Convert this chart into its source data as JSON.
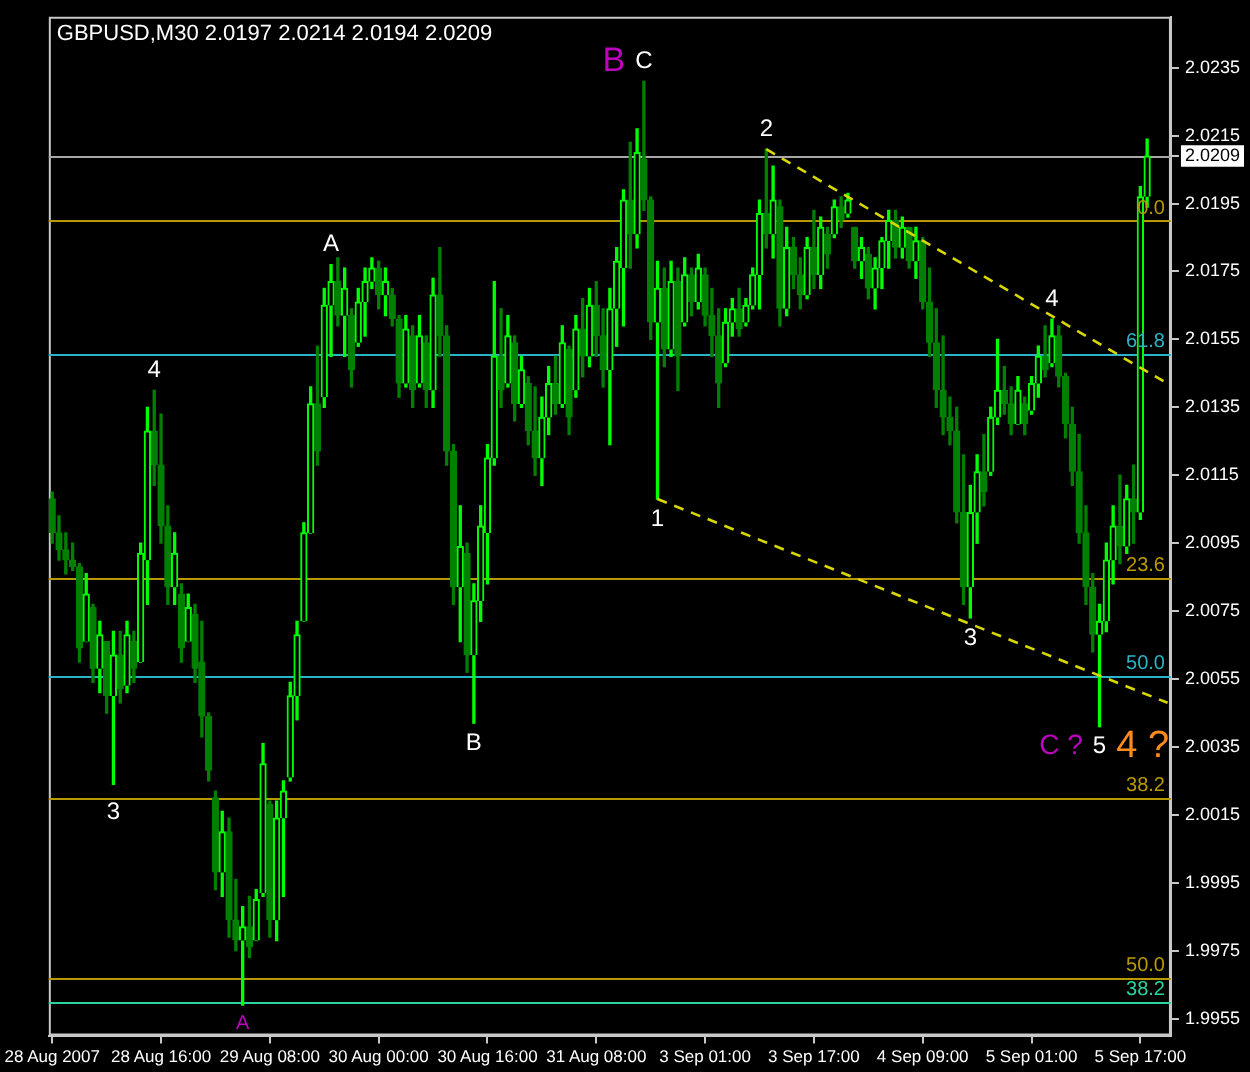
{
  "chart_data": {
    "type": "candlestick",
    "title": "GBPUSD,M30 2.0197 2.0214 2.0194 2.0209",
    "categories": [
      "28 Aug 2007",
      null,
      null,
      null,
      null,
      null,
      null,
      null,
      null,
      null,
      null,
      null,
      null,
      null,
      null,
      null,
      "28 Aug 16:00",
      null,
      null,
      null,
      null,
      null,
      null,
      null,
      null,
      null,
      null,
      null,
      null,
      null,
      null,
      null,
      "29 Aug 08:00",
      null,
      null,
      null,
      null,
      null,
      null,
      null,
      null,
      null,
      null,
      null,
      null,
      null,
      null,
      null,
      "30 Aug 00:00",
      null,
      null,
      null,
      null,
      null,
      null,
      null,
      null,
      null,
      null,
      null,
      null,
      null,
      null,
      null,
      "30 Aug 16:00",
      null,
      null,
      null,
      null,
      null,
      null,
      null,
      null,
      null,
      null,
      null,
      null,
      null,
      null,
      null,
      "31 Aug 08:00",
      null,
      null,
      null,
      null,
      null,
      null,
      null,
      null,
      null,
      null,
      null,
      null,
      null,
      null,
      null,
      "3 Sep 01:00",
      null,
      null,
      null,
      null,
      null,
      null,
      null,
      null,
      null,
      null,
      null,
      null,
      null,
      null,
      null,
      "3 Sep 17:00",
      null,
      null,
      null,
      null,
      null,
      null,
      null,
      null,
      null,
      null,
      null,
      null,
      null,
      null,
      null,
      "4 Sep 09:00",
      null,
      null,
      null,
      null,
      null,
      null,
      null,
      null,
      null,
      null,
      null,
      null,
      null,
      null,
      null,
      "5 Sep 01:00",
      null,
      null,
      null,
      null,
      null,
      null,
      null,
      null,
      null,
      null,
      null,
      null,
      null,
      null,
      null,
      "5 Sep 17:00",
      null,
      null,
      null,
      null
    ],
    "ohlc": [
      [
        2.0108,
        2.011,
        2.0095,
        2.0098
      ],
      [
        2.0098,
        2.0103,
        2.009,
        2.0093
      ],
      [
        2.0093,
        2.0098,
        2.0086,
        2.009
      ],
      [
        2.009,
        2.0095,
        2.0087,
        2.0088
      ],
      [
        2.0088,
        2.0089,
        2.006,
        2.0064
      ],
      [
        2.0066,
        2.0086,
        2.0066,
        2.008
      ],
      [
        2.0076,
        2.0077,
        2.0054,
        2.0058
      ],
      [
        2.0058,
        2.0072,
        2.0051,
        2.0068
      ],
      [
        2.0066,
        2.0066,
        2.0045,
        2.005
      ],
      [
        2.005,
        2.0069,
        2.0024,
        2.0062
      ],
      [
        2.0062,
        2.0069,
        2.0048,
        2.0052
      ],
      [
        2.0053,
        2.0072,
        2.0051,
        2.0068
      ],
      [
        2.0066,
        2.0069,
        2.0054,
        2.0058
      ],
      [
        2.006,
        2.0095,
        2.006,
        2.0092
      ],
      [
        2.009,
        2.0135,
        2.0077,
        2.0128
      ],
      [
        2.0128,
        2.014,
        2.0112,
        2.0118
      ],
      [
        2.0118,
        2.0133,
        2.0095,
        2.01
      ],
      [
        2.01,
        2.0106,
        2.0077,
        2.0082
      ],
      [
        2.0082,
        2.0098,
        2.0077,
        2.0092
      ],
      [
        2.008,
        2.0083,
        2.006,
        2.0064
      ],
      [
        2.0066,
        2.008,
        2.0066,
        2.0076
      ],
      [
        2.0074,
        2.0077,
        2.0054,
        2.0058
      ],
      [
        2.006,
        2.0072,
        2.0038,
        2.0044
      ],
      [
        2.0044,
        2.0045,
        2.0025,
        2.0028
      ],
      [
        2.002,
        2.0022,
        1.9993,
        1.9998
      ],
      [
        1.9998,
        2.0016,
        1.9991,
        2.001
      ],
      [
        2.001,
        2.0014,
        1.9979,
        1.9984
      ],
      [
        1.9984,
        1.9996,
        1.9975,
        1.9978
      ],
      [
        1.9978,
        1.9988,
        1.9959,
        1.9982
      ],
      [
        1.9982,
        1.9991,
        1.9973,
        1.9976
      ],
      [
        1.9978,
        1.9993,
        1.9978,
        1.999
      ],
      [
        1.9992,
        2.0036,
        1.9991,
        2.003
      ],
      [
        2.0018,
        2.0019,
        1.9979,
        1.9984
      ],
      [
        1.9984,
        2.0019,
        1.9978,
        2.0014
      ],
      [
        2.0014,
        2.0025,
        1.9991,
        2.0022
      ],
      [
        2.0026,
        2.0054,
        2.0025,
        2.005
      ],
      [
        2.005,
        2.0072,
        2.0043,
        2.0068
      ],
      [
        2.0072,
        2.0101,
        2.0072,
        2.0098
      ],
      [
        2.0098,
        2.0141,
        2.0098,
        2.0136
      ],
      [
        2.0136,
        2.0153,
        2.0118,
        2.0122
      ],
      [
        2.0138,
        2.017,
        2.0135,
        2.0165
      ],
      [
        2.0165,
        2.0177,
        2.015,
        2.0172
      ],
      [
        2.0172,
        2.0179,
        2.0159,
        2.0162
      ],
      [
        2.0162,
        2.0176,
        2.015,
        2.017
      ],
      [
        2.0162,
        2.0164,
        2.0141,
        2.0146
      ],
      [
        2.0154,
        2.017,
        2.0153,
        2.0166
      ],
      [
        2.0166,
        2.0176,
        2.0156,
        2.0172
      ],
      [
        2.0172,
        2.0179,
        2.017,
        2.0176
      ],
      [
        2.0176,
        2.0178,
        2.0164,
        2.0168
      ],
      [
        2.0168,
        2.0176,
        2.0162,
        2.0172
      ],
      [
        2.0168,
        2.017,
        2.0159,
        2.0161
      ],
      [
        2.0161,
        2.0162,
        2.0138,
        2.0142
      ],
      [
        2.0142,
        2.0162,
        2.0141,
        2.0158
      ],
      [
        2.0156,
        2.0159,
        2.0135,
        2.014
      ],
      [
        2.0142,
        2.0162,
        2.0141,
        2.0156
      ],
      [
        2.0154,
        2.0156,
        2.0135,
        2.014
      ],
      [
        2.014,
        2.0173,
        2.0135,
        2.0168
      ],
      [
        2.0168,
        2.0182,
        2.015,
        2.0156
      ],
      [
        2.0156,
        2.0159,
        2.0118,
        2.0122
      ],
      [
        2.0122,
        2.0124,
        2.0077,
        2.0082
      ],
      [
        2.0082,
        2.0106,
        2.0066,
        2.0094
      ],
      [
        2.0092,
        2.0095,
        2.0057,
        2.0062
      ],
      [
        2.0062,
        2.0083,
        2.0042,
        2.0078
      ],
      [
        2.0078,
        2.0106,
        2.0072,
        2.01
      ],
      [
        2.0098,
        2.0124,
        2.0083,
        2.012
      ],
      [
        2.012,
        2.0172,
        2.0118,
        2.015
      ],
      [
        2.015,
        2.0164,
        2.0135,
        2.014
      ],
      [
        2.0142,
        2.0162,
        2.0141,
        2.0156
      ],
      [
        2.0154,
        2.0156,
        2.0131,
        2.0136
      ],
      [
        2.0136,
        2.015,
        2.0135,
        2.0146
      ],
      [
        2.0142,
        2.0144,
        2.0124,
        2.0128
      ],
      [
        2.0128,
        2.0141,
        2.0115,
        2.012
      ],
      [
        2.012,
        2.0138,
        2.0112,
        2.0132
      ],
      [
        2.0132,
        2.0147,
        2.0127,
        2.0142
      ],
      [
        2.0142,
        2.015,
        2.0133,
        2.0136
      ],
      [
        2.0136,
        2.0159,
        2.0135,
        2.0154
      ],
      [
        2.0152,
        2.0153,
        2.0127,
        2.0132
      ],
      [
        2.014,
        2.0162,
        2.0138,
        2.0158
      ],
      [
        2.0158,
        2.0167,
        2.0144,
        2.015
      ],
      [
        2.015,
        2.017,
        2.0147,
        2.0165
      ],
      [
        2.0165,
        2.0172,
        2.015,
        2.0156
      ],
      [
        2.0156,
        2.0164,
        2.0141,
        2.0146
      ],
      [
        2.0146,
        2.017,
        2.0124,
        2.0164
      ],
      [
        2.0164,
        2.0182,
        2.0153,
        2.0178
      ],
      [
        2.0176,
        2.0199,
        2.0159,
        2.0196
      ],
      [
        2.0196,
        2.0213,
        2.0176,
        2.0186
      ],
      [
        2.0186,
        2.0217,
        2.0182,
        2.021
      ],
      [
        2.0208,
        2.0231,
        2.0193,
        2.0196
      ],
      [
        2.0196,
        2.0197,
        2.0155,
        2.016
      ],
      [
        2.016,
        2.0178,
        2.0108,
        2.017
      ],
      [
        2.017,
        2.0176,
        2.0147,
        2.0152
      ],
      [
        2.0152,
        2.0178,
        2.015,
        2.0172
      ],
      [
        2.0172,
        2.0176,
        2.014,
        2.015
      ],
      [
        2.016,
        2.0179,
        2.0159,
        2.0174
      ],
      [
        2.0174,
        2.0176,
        2.0162,
        2.0166
      ],
      [
        2.0166,
        2.018,
        2.0164,
        2.0176
      ],
      [
        2.0174,
        2.0176,
        2.0159,
        2.0162
      ],
      [
        2.0162,
        2.017,
        2.015,
        2.0156
      ],
      [
        2.0156,
        2.0164,
        2.0135,
        2.0142
      ],
      [
        2.0148,
        2.0164,
        2.0147,
        2.016
      ],
      [
        2.016,
        2.0167,
        2.0156,
        2.0164
      ],
      [
        2.0164,
        2.017,
        2.0156,
        2.0158
      ],
      [
        2.016,
        2.0167,
        2.0159,
        2.0165
      ],
      [
        2.0165,
        2.0176,
        2.0164,
        2.0174
      ],
      [
        2.0174,
        2.0196,
        2.0164,
        2.0192
      ],
      [
        2.0192,
        2.0211,
        2.0182,
        2.0186
      ],
      [
        2.0186,
        2.0206,
        2.0179,
        2.0196
      ],
      [
        2.0194,
        2.0196,
        2.0159,
        2.0164
      ],
      [
        2.0164,
        2.0188,
        2.0162,
        2.0182
      ],
      [
        2.0182,
        2.0185,
        2.017,
        2.0174
      ],
      [
        2.0174,
        2.0179,
        2.0164,
        2.0168
      ],
      [
        2.0168,
        2.0185,
        2.0167,
        2.0182
      ],
      [
        2.0182,
        2.0193,
        2.017,
        2.0174
      ],
      [
        2.0174,
        2.0191,
        2.017,
        2.0188
      ],
      [
        2.0186,
        2.0188,
        2.0176,
        2.018
      ],
      [
        2.0186,
        2.0196,
        2.0185,
        2.0194
      ],
      [
        2.0194,
        2.0197,
        2.0188,
        2.019
      ],
      [
        2.0192,
        2.0198,
        2.0191,
        2.0196
      ],
      [
        2.0188,
        2.0188,
        2.0176,
        2.0178
      ],
      [
        2.0178,
        2.0185,
        2.0173,
        2.0182
      ],
      [
        2.018,
        2.0182,
        2.0167,
        2.017
      ],
      [
        2.017,
        2.0179,
        2.0164,
        2.0176
      ],
      [
        2.0176,
        2.0185,
        2.017,
        2.0184
      ],
      [
        2.0184,
        2.0193,
        2.0176,
        2.019
      ],
      [
        2.019,
        2.0193,
        2.0179,
        2.0182
      ],
      [
        2.0182,
        2.0191,
        2.0179,
        2.0188
      ],
      [
        2.0188,
        2.0188,
        2.0176,
        2.0178
      ],
      [
        2.0178,
        2.0188,
        2.0173,
        2.0184
      ],
      [
        2.0184,
        2.0185,
        2.0164,
        2.0166
      ],
      [
        2.0166,
        2.0176,
        2.015,
        2.0154
      ],
      [
        2.0154,
        2.0164,
        2.0135,
        2.014
      ],
      [
        2.014,
        2.0156,
        2.0127,
        2.0132
      ],
      [
        2.0132,
        2.0138,
        2.0124,
        2.0128
      ],
      [
        2.0128,
        2.0135,
        2.0101,
        2.0104
      ],
      [
        2.0104,
        2.0121,
        2.0077,
        2.0082
      ],
      [
        2.0082,
        2.0112,
        2.0073,
        2.0104
      ],
      [
        2.0104,
        2.0121,
        2.0095,
        2.0116
      ],
      [
        2.0116,
        2.0127,
        2.0106,
        2.011
      ],
      [
        2.0116,
        2.0135,
        2.0115,
        2.0132
      ],
      [
        2.0132,
        2.0155,
        2.013,
        2.014
      ],
      [
        2.014,
        2.0147,
        2.0133,
        2.0136
      ],
      [
        2.0136,
        2.0141,
        2.0127,
        2.013
      ],
      [
        2.013,
        2.0144,
        2.013,
        2.014
      ],
      [
        2.0136,
        2.0138,
        2.0127,
        2.013
      ],
      [
        2.0134,
        2.0144,
        2.0133,
        2.0142
      ],
      [
        2.0142,
        2.0153,
        2.0138,
        2.015
      ],
      [
        2.015,
        2.0159,
        2.0144,
        2.0146
      ],
      [
        2.0148,
        2.0161,
        2.0147,
        2.0156
      ],
      [
        2.0156,
        2.0159,
        2.0141,
        2.0144
      ],
      [
        2.0144,
        2.0145,
        2.0126,
        2.013
      ],
      [
        2.013,
        2.0135,
        2.0112,
        2.0116
      ],
      [
        2.0116,
        2.0127,
        2.0095,
        2.0098
      ],
      [
        2.0098,
        2.0106,
        2.0077,
        2.0082
      ],
      [
        2.0082,
        2.0086,
        2.0063,
        2.0068
      ],
      [
        2.0068,
        2.0077,
        2.0041,
        2.0072
      ],
      [
        2.0072,
        2.0095,
        2.0069,
        2.009
      ],
      [
        2.009,
        2.0106,
        2.0083,
        2.01
      ],
      [
        2.01,
        2.0115,
        2.0089,
        2.0094
      ],
      [
        2.0094,
        2.0112,
        2.0092,
        2.0108
      ],
      [
        2.0108,
        2.0118,
        2.0095,
        2.0104
      ],
      [
        2.0104,
        2.02,
        2.0102,
        2.0197
      ],
      [
        2.0197,
        2.0214,
        2.0194,
        2.0209
      ],
      null,
      null,
      null
    ],
    "colors": [
      "#008000",
      "#008000",
      "#008000",
      "#008000",
      "#008000",
      "#00ff00",
      "#008000",
      "#00ff00",
      "#008000",
      "#00ff00",
      "#008000",
      "#00ff00",
      "#008000",
      "#00ff00",
      "#00ff00",
      "#008000",
      "#008000",
      "#008000",
      "#00ff00",
      "#008000",
      "#00ff00",
      "#008000",
      "#008000",
      "#008000",
      "#008000",
      "#00ff00",
      "#008000",
      "#008000",
      "#00ff00",
      "#008000",
      "#00ff00",
      "#00ff00",
      "#008000",
      "#00ff00",
      "#00ff00",
      "#00ff00",
      "#00ff00",
      "#00ff00",
      "#00ff00",
      "#008000",
      "#00ff00",
      "#00ff00",
      "#008000",
      "#00ff00",
      "#008000",
      "#00ff00",
      "#00ff00",
      "#00ff00",
      "#008000",
      "#00ff00",
      "#008000",
      "#008000",
      "#00ff00",
      "#008000",
      "#00ff00",
      "#008000",
      "#00ff00",
      "#008000",
      "#008000",
      "#008000",
      "#00ff00",
      "#008000",
      "#00ff00",
      "#00ff00",
      "#00ff00",
      "#00ff00",
      "#008000",
      "#00ff00",
      "#008000",
      "#00ff00",
      "#008000",
      "#008000",
      "#00ff00",
      "#00ff00",
      "#008000",
      "#00ff00",
      "#008000",
      "#00ff00",
      "#008000",
      "#00ff00",
      "#008000",
      "#008000",
      "#00ff00",
      "#00ff00",
      "#00ff00",
      "#008000",
      "#00ff00",
      "#008000",
      "#008000",
      "#00ff00",
      "#008000",
      "#00ff00",
      "#008000",
      "#00ff00",
      "#008000",
      "#00ff00",
      "#008000",
      "#008000",
      "#008000",
      "#00ff00",
      "#00ff00",
      "#008000",
      "#00ff00",
      "#00ff00",
      "#00ff00",
      "#008000",
      "#00ff00",
      "#008000",
      "#00ff00",
      "#008000",
      "#008000",
      "#00ff00",
      "#008000",
      "#00ff00",
      "#008000",
      "#00ff00",
      "#008000",
      "#00ff00",
      "#008000",
      "#00ff00",
      "#008000",
      "#00ff00",
      "#00ff00",
      "#00ff00",
      "#008000",
      "#00ff00",
      "#008000",
      "#00ff00",
      "#008000",
      "#008000",
      "#008000",
      "#008000",
      "#008000",
      "#008000",
      "#008000",
      "#00ff00",
      "#00ff00",
      "#008000",
      "#00ff00",
      "#00ff00",
      "#008000",
      "#008000",
      "#00ff00",
      "#008000",
      "#00ff00",
      "#00ff00",
      "#008000",
      "#00ff00",
      "#008000",
      "#008000",
      "#008000",
      "#008000",
      "#008000",
      "#008000",
      "#00ff00",
      "#00ff00",
      "#00ff00",
      "#008000",
      "#00ff00",
      "#008000",
      "#00ff00",
      "#00ff00",
      null,
      null,
      null
    ],
    "series": [
      {
        "type": "line",
        "color": "#d8d800",
        "line_style": "dashed",
        "values": [
          null,
          null,
          null,
          null,
          null,
          null,
          null,
          null,
          null,
          null,
          null,
          null,
          null,
          null,
          null,
          null,
          null,
          null,
          null,
          null,
          null,
          null,
          null,
          null,
          null,
          null,
          null,
          null,
          null,
          null,
          null,
          null,
          null,
          null,
          null,
          null,
          null,
          null,
          null,
          null,
          null,
          null,
          null,
          null,
          null,
          null,
          null,
          null,
          null,
          null,
          null,
          null,
          null,
          null,
          null,
          null,
          null,
          null,
          null,
          null,
          null,
          null,
          null,
          null,
          null,
          null,
          null,
          null,
          null,
          null,
          null,
          null,
          null,
          null,
          null,
          null,
          null,
          null,
          null,
          null,
          null,
          null,
          null,
          null,
          null,
          null,
          null,
          null,
          null,
          null,
          null,
          null,
          null,
          null,
          null,
          null,
          null,
          null,
          null,
          null,
          null,
          null,
          null,
          null,
          null,
          2.0211,
          null,
          null,
          null,
          null,
          null,
          null,
          null,
          null,
          null,
          null,
          null,
          null,
          null,
          null,
          null,
          null,
          null,
          null,
          null,
          null,
          null,
          null,
          null,
          null,
          null,
          null,
          null,
          null,
          null,
          null,
          null,
          null,
          null,
          null,
          null,
          null,
          null,
          null,
          null,
          null,
          null,
          null,
          null,
          null,
          null,
          null,
          null,
          null,
          null,
          null,
          null,
          null,
          null,
          null,
          null,
          null,
          null,
          null,
          2.0142
        ]
      },
      {
        "type": "line",
        "color": "#d8d800",
        "line_style": "dashed",
        "values": [
          null,
          null,
          null,
          null,
          null,
          null,
          null,
          null,
          null,
          null,
          null,
          null,
          null,
          null,
          null,
          null,
          null,
          null,
          null,
          null,
          null,
          null,
          null,
          null,
          null,
          null,
          null,
          null,
          null,
          null,
          null,
          null,
          null,
          null,
          null,
          null,
          null,
          null,
          null,
          null,
          null,
          null,
          null,
          null,
          null,
          null,
          null,
          null,
          null,
          null,
          null,
          null,
          null,
          null,
          null,
          null,
          null,
          null,
          null,
          null,
          null,
          null,
          null,
          null,
          null,
          null,
          null,
          null,
          null,
          null,
          null,
          null,
          null,
          null,
          null,
          null,
          null,
          null,
          null,
          null,
          null,
          null,
          null,
          null,
          null,
          null,
          null,
          null,
          null,
          2.0108,
          null,
          null,
          null,
          null,
          null,
          null,
          null,
          null,
          null,
          null,
          null,
          null,
          null,
          null,
          null,
          null,
          null,
          null,
          null,
          null,
          null,
          null,
          null,
          null,
          null,
          null,
          null,
          null,
          null,
          null,
          null,
          null,
          null,
          null,
          null,
          null,
          null,
          null,
          null,
          null,
          null,
          null,
          null,
          null,
          null,
          null,
          null,
          null,
          null,
          null,
          null,
          null,
          null,
          null,
          null,
          null,
          null,
          null,
          null,
          null,
          null,
          null,
          null,
          null,
          null,
          null,
          null,
          null,
          null,
          null,
          null,
          null,
          null,
          null,
          2.0048
        ]
      }
    ],
    "ylim": [
      1.995,
      2.025
    ],
    "yticks": [
      1.9955,
      1.9975,
      1.9995,
      2.0015,
      2.0035,
      2.0055,
      2.0075,
      2.0095,
      2.0115,
      2.0135,
      2.0155,
      2.0175,
      2.0195,
      2.0209,
      2.0215,
      2.0235
    ],
    "ref_lines": [
      {
        "axis": "y",
        "value": 2.0209,
        "color": "#a8a8a8"
      },
      {
        "axis": "y",
        "value": 2.019,
        "color": "#b89a00"
      },
      {
        "axis": "y",
        "value": 2.0151,
        "color": "#2ab4c6"
      },
      {
        "axis": "y",
        "value": 2.0085,
        "color": "#b89a00"
      },
      {
        "axis": "y",
        "value": 2.0056,
        "color": "#2ab4c6"
      },
      {
        "axis": "y",
        "value": 2.002,
        "color": "#b89a00"
      },
      {
        "axis": "y",
        "value": 1.9967,
        "color": "#b89a00"
      },
      {
        "axis": "y",
        "value": 1.996,
        "color": "#2ad4a0"
      }
    ],
    "annotations": [
      {
        "text": "0.0",
        "y": 2.019
      },
      {
        "text": "61.8",
        "y": 2.0151
      },
      {
        "text": "23.6",
        "y": 2.0085
      },
      {
        "text": "50.0",
        "y": 2.0056
      },
      {
        "text": "38.2",
        "y": 2.002
      },
      {
        "text": "50.0",
        "y": 1.9967
      },
      {
        "text": "38.2",
        "y": 1.996
      },
      {
        "text": "3",
        "y": 2.0024
      },
      {
        "text": "4",
        "y": 2.014
      },
      {
        "text": "A",
        "y": 1.9959
      },
      {
        "text": "A",
        "y": 2.0177
      },
      {
        "text": "B",
        "y": 2.0042
      },
      "B",
      {
        "text": "C",
        "y": 2.0231
      },
      {
        "text": "1",
        "y": 2.0108
      },
      {
        "text": "2",
        "y": 2.0211
      },
      {
        "text": "3",
        "y": 2.0073
      },
      {
        "text": "4",
        "y": 2.0161
      },
      "C ?",
      {
        "text": "5",
        "y": 2.0041
      },
      "4 ?"
    ]
  }
}
